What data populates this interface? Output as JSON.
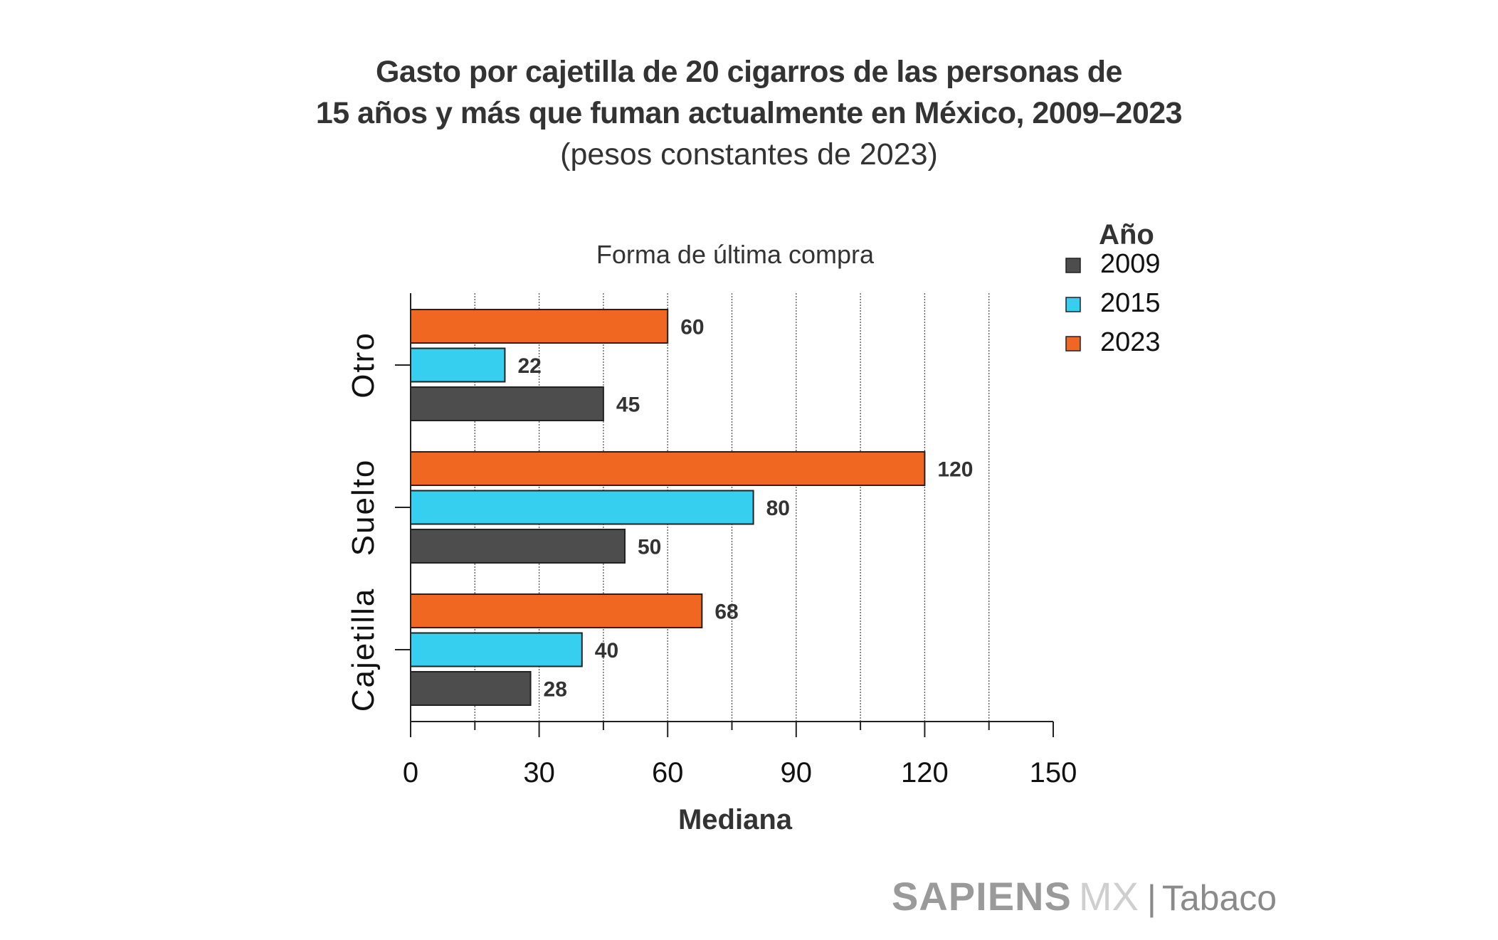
{
  "header": {
    "title_line1": "Gasto por cajetilla de 20 cigarros de las personas de",
    "title_line2": "15 años y más que fuman actualmente en México, 2009–2023",
    "subtitle": "(pesos constantes de 2023)"
  },
  "brand": {
    "name_bold": "SAPIENS",
    "name_light": "MX",
    "separator": "|",
    "section": "Tabaco"
  },
  "colors": {
    "2009": "#4d4d4d",
    "2015": "#36cff0",
    "2023": "#ef6721",
    "text": "#333333"
  },
  "chart_data": {
    "type": "bar",
    "orientation": "horizontal",
    "title": "Forma de última compra",
    "xlabel": "Mediana",
    "ylabel": "",
    "xlim": [
      0,
      150
    ],
    "xticks": [
      0,
      30,
      60,
      90,
      120,
      150
    ],
    "xtick_labels": [
      "0",
      "30",
      "60",
      "90",
      "120",
      "150"
    ],
    "minor_gridlines": [
      15,
      45,
      75,
      105,
      135
    ],
    "grid": "vertical dotted",
    "categories": [
      "Otro",
      "Suelto",
      "Cajetilla"
    ],
    "legend": {
      "title": "Año",
      "position": "top-right",
      "entries": [
        "2009",
        "2015",
        "2023"
      ]
    },
    "series": [
      {
        "name": "2023",
        "values": [
          60,
          120,
          68
        ]
      },
      {
        "name": "2015",
        "values": [
          22,
          80,
          40
        ]
      },
      {
        "name": "2009",
        "values": [
          45,
          50,
          28
        ]
      }
    ]
  }
}
